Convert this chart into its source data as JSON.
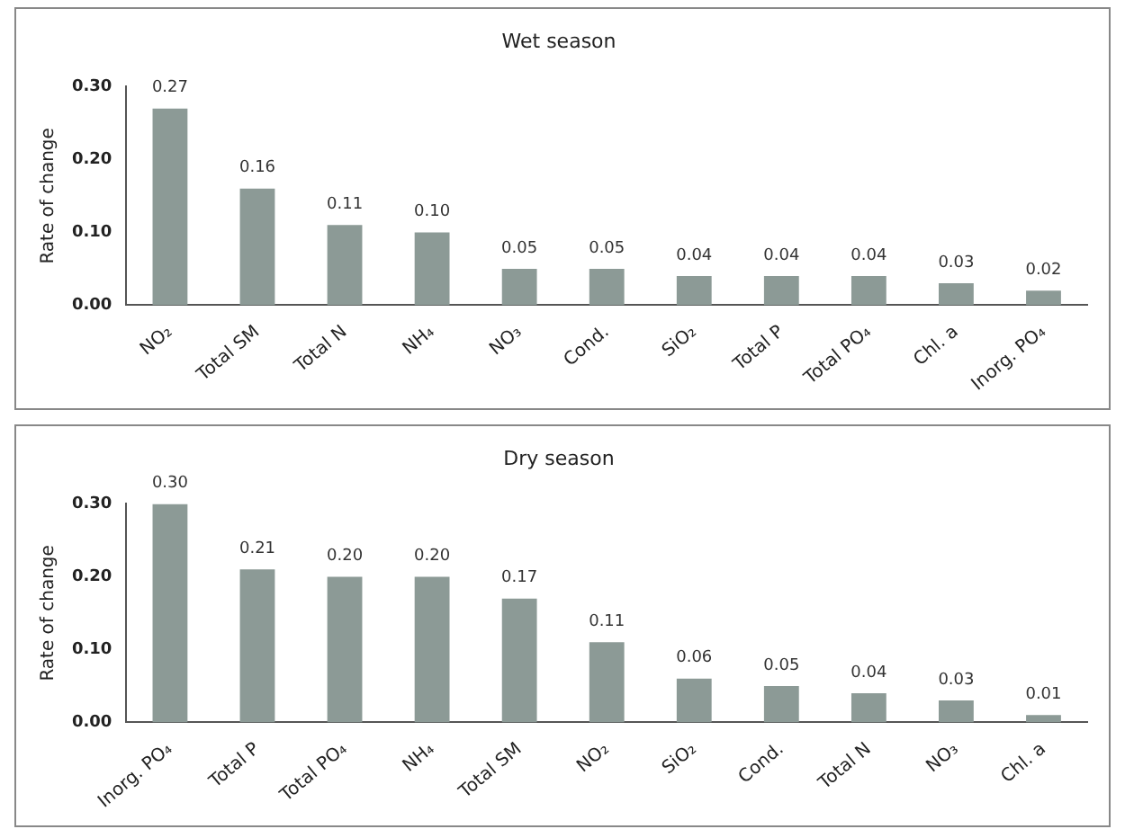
{
  "chart_data": [
    {
      "type": "bar",
      "title": "Wet season",
      "ylabel": "Rate of change",
      "categories": [
        "NO₂",
        "Total SM",
        "Total N",
        "NH₄",
        "NO₃",
        "Cond.",
        "SiO₂",
        "Total P",
        "Total PO₄",
        "Chl. a",
        "Inorg. PO₄"
      ],
      "values": [
        0.27,
        0.16,
        0.11,
        0.1,
        0.05,
        0.05,
        0.04,
        0.04,
        0.04,
        0.03,
        0.02
      ],
      "value_labels": [
        "0.27",
        "0.16",
        "0.11",
        "0.10",
        "0.05",
        "0.05",
        "0.04",
        "0.04",
        "0.04",
        "0.03",
        "0.02"
      ],
      "color": "#8c9a96",
      "ylim": [
        0,
        0.3
      ],
      "yticks": [
        {
          "value": 0,
          "label": "0.00"
        },
        {
          "value": 0.1,
          "label": "0.10"
        },
        {
          "value": 0.2,
          "label": "0.20"
        },
        {
          "value": 0.3,
          "label": "0.30"
        }
      ],
      "grid": false,
      "legend": false
    },
    {
      "type": "bar",
      "title": "Dry season",
      "ylabel": "Rate of change",
      "categories": [
        "Inorg. PO₄",
        "Total P",
        "Total PO₄",
        "NH₄",
        "Total SM",
        "NO₂",
        "SiO₂",
        "Cond.",
        "Total N",
        "NO₃",
        "Chl. a"
      ],
      "values": [
        0.3,
        0.21,
        0.2,
        0.2,
        0.17,
        0.11,
        0.06,
        0.05,
        0.04,
        0.03,
        0.01
      ],
      "value_labels": [
        "0.30",
        "0.21",
        "0.20",
        "0.20",
        "0.17",
        "0.11",
        "0.06",
        "0.05",
        "0.04",
        "0.03",
        "0.01"
      ],
      "color": "#8c9a96",
      "ylim": [
        0,
        0.3
      ],
      "yticks": [
        {
          "value": 0,
          "label": "0.00"
        },
        {
          "value": 0.1,
          "label": "0.10"
        },
        {
          "value": 0.2,
          "label": "0.20"
        },
        {
          "value": 0.3,
          "label": "0.30"
        }
      ],
      "grid": false,
      "legend": false
    }
  ]
}
